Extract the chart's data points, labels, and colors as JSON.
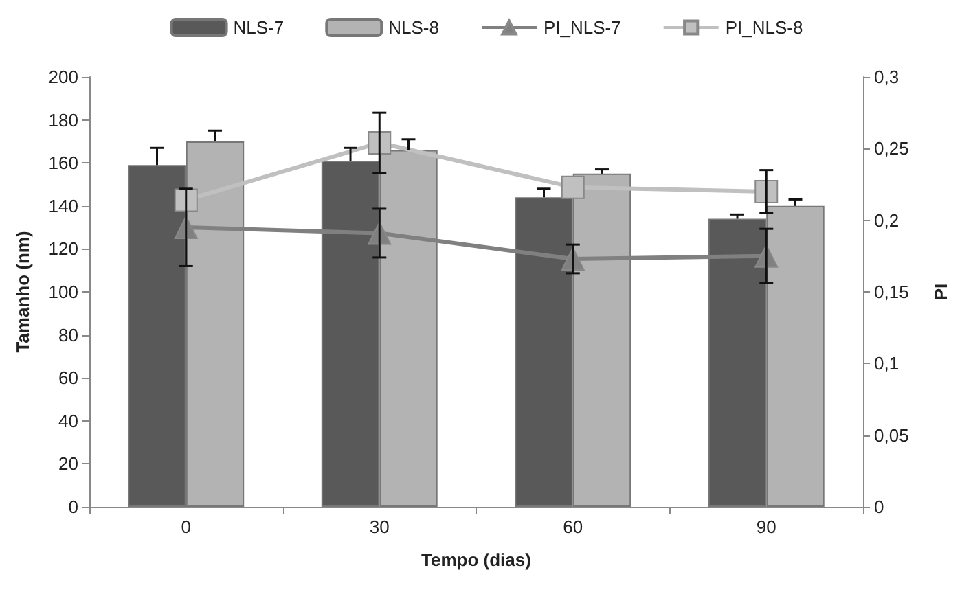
{
  "chart_data": {
    "type": "bar",
    "xlabel": "Tempo (dias)",
    "ylabel": "Tamanho (nm)",
    "y2label": "PI",
    "categories": [
      "0",
      "30",
      "60",
      "90"
    ],
    "series": [
      {
        "name": "NLS-7",
        "color": "#595959",
        "values": [
          159,
          161,
          144,
          134
        ],
        "errors": [
          8,
          6,
          4,
          2
        ]
      },
      {
        "name": "NLS-8",
        "color": "#b3b3b3",
        "values": [
          170,
          166,
          155,
          140
        ],
        "errors": [
          5,
          5,
          2,
          3
        ]
      },
      {
        "name": "PI_NLS-7",
        "type": "line",
        "axis": "y2",
        "marker": "triangle",
        "color": "#808080",
        "values": [
          0.195,
          0.191,
          0.173,
          0.175
        ],
        "errors": [
          0.027,
          0.017,
          0.01,
          0.019
        ]
      },
      {
        "name": "PI_NLS-8",
        "type": "line",
        "axis": "y2",
        "marker": "square",
        "color": "#c0c0c0",
        "values": [
          0.214,
          0.254,
          0.223,
          0.22
        ],
        "errors": [
          null,
          0.021,
          null,
          0.015
        ]
      }
    ],
    "ylim": [
      0,
      200
    ],
    "yticks": [
      0,
      20,
      40,
      60,
      80,
      100,
      120,
      140,
      160,
      180,
      200
    ],
    "y2lim": [
      0,
      0.3
    ],
    "y2ticks": [
      {
        "value": 0,
        "label": "0"
      },
      {
        "value": 0.05,
        "label": "0,05"
      },
      {
        "value": 0.1,
        "label": "0,1"
      },
      {
        "value": 0.15,
        "label": "0,15"
      },
      {
        "value": 0.2,
        "label": "0,2"
      },
      {
        "value": 0.25,
        "label": "0,25"
      },
      {
        "value": 0.3,
        "label": "0,3"
      }
    ],
    "grid": false,
    "legend": "top"
  }
}
